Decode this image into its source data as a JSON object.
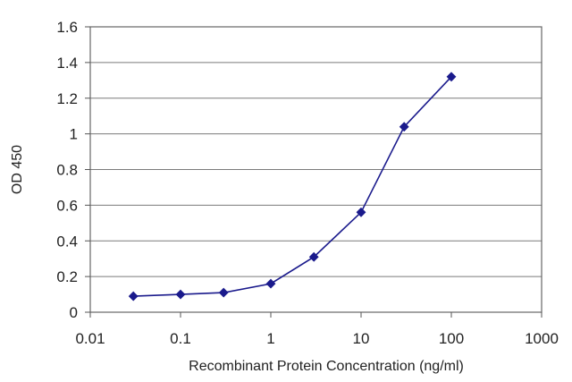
{
  "chart_data": {
    "type": "scatter",
    "title": "",
    "xlabel": "Recombinant Protein Concentration (ng/ml)",
    "ylabel": "OD 450",
    "xscale": "log",
    "xlim": [
      0.01,
      1000
    ],
    "ylim": [
      0,
      1.6
    ],
    "x_ticks": [
      0.01,
      0.1,
      1,
      10,
      100,
      1000
    ],
    "x_tick_labels": [
      "0.01",
      "0.1",
      "1",
      "10",
      "100",
      "1000"
    ],
    "y_ticks": [
      0,
      0.2,
      0.4,
      0.6,
      0.8,
      1,
      1.2,
      1.4,
      1.6
    ],
    "y_tick_labels": [
      "0",
      "0.2",
      "0.4",
      "0.6",
      "0.8",
      "1",
      "1.2",
      "1.4",
      "1.6"
    ],
    "grid": "horizontal",
    "legend": "none",
    "series": [
      {
        "color": "#1a1a8c",
        "marker": "diamond",
        "line": true,
        "x": [
          0.03,
          0.1,
          0.3,
          1,
          3,
          10,
          30,
          100
        ],
        "y": [
          0.09,
          0.1,
          0.11,
          0.16,
          0.31,
          0.56,
          1.04,
          1.32
        ]
      }
    ]
  }
}
